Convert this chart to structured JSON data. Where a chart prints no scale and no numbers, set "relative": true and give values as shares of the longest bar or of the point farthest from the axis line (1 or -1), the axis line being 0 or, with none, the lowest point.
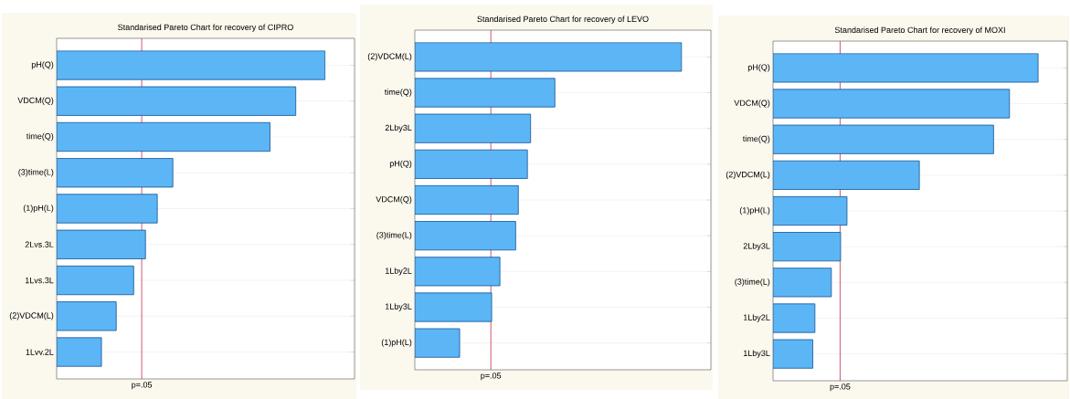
{
  "chart_data": [
    {
      "type": "bar",
      "orientation": "horizontal",
      "relative": true,
      "title": "Standarised Pareto Chart for recovery of CIPRO",
      "categories": [
        "pH(Q)",
        "VDCM(Q)",
        "time(Q)",
        "(3)time(L)",
        "(1)pH(L)",
        "2Lvs.3L",
        "1Lvs.3L",
        "(2)VDCM(L)",
        "1Lvv.2L"
      ],
      "values": [
        1,
        0.891,
        0.795,
        0.433,
        0.375,
        0.331,
        0.287,
        0.222,
        0.167
      ],
      "color": "#5cb6f5",
      "grid": "y",
      "ref_lines": [
        {
          "axis": "x",
          "value": 0.317,
          "label": "p=.05",
          "color": "#c0304a"
        }
      ]
    },
    {
      "type": "bar",
      "orientation": "horizontal",
      "relative": true,
      "title": "Standarised Pareto Chart for recovery of LEVO",
      "categories": [
        "(2)VDCM(L)",
        "time(Q)",
        "2Lby3L",
        "pH(Q)",
        "VDCM(Q)",
        "(3)time(L)",
        "1Lby2L",
        "1Lby3L",
        "(1)pH(L)"
      ],
      "values": [
        1,
        0.525,
        0.434,
        0.422,
        0.388,
        0.378,
        0.319,
        0.288,
        0.168
      ],
      "color": "#5cb6f5",
      "grid": "y",
      "ref_lines": [
        {
          "axis": "x",
          "value": 0.285,
          "label": "p=.05",
          "color": "#c0304a"
        }
      ]
    },
    {
      "type": "bar",
      "orientation": "horizontal",
      "relative": true,
      "title": "Standarised Pareto Chart for recovery of MOXI",
      "categories": [
        "pH(Q)",
        "VDCM(Q)",
        "time(Q)",
        "(2)VDCM(L)",
        "(1)pH(L)",
        "2Lby3L",
        "(3)time(L)",
        "1Lby2L",
        "1Lby3L"
      ],
      "values": [
        1,
        0.892,
        0.832,
        0.552,
        0.279,
        0.255,
        0.22,
        0.158,
        0.15
      ],
      "color": "#5cb6f5",
      "grid": "y",
      "ref_lines": [
        {
          "axis": "x",
          "value": 0.253,
          "label": "p=.05",
          "color": "#c0304a"
        }
      ]
    }
  ]
}
